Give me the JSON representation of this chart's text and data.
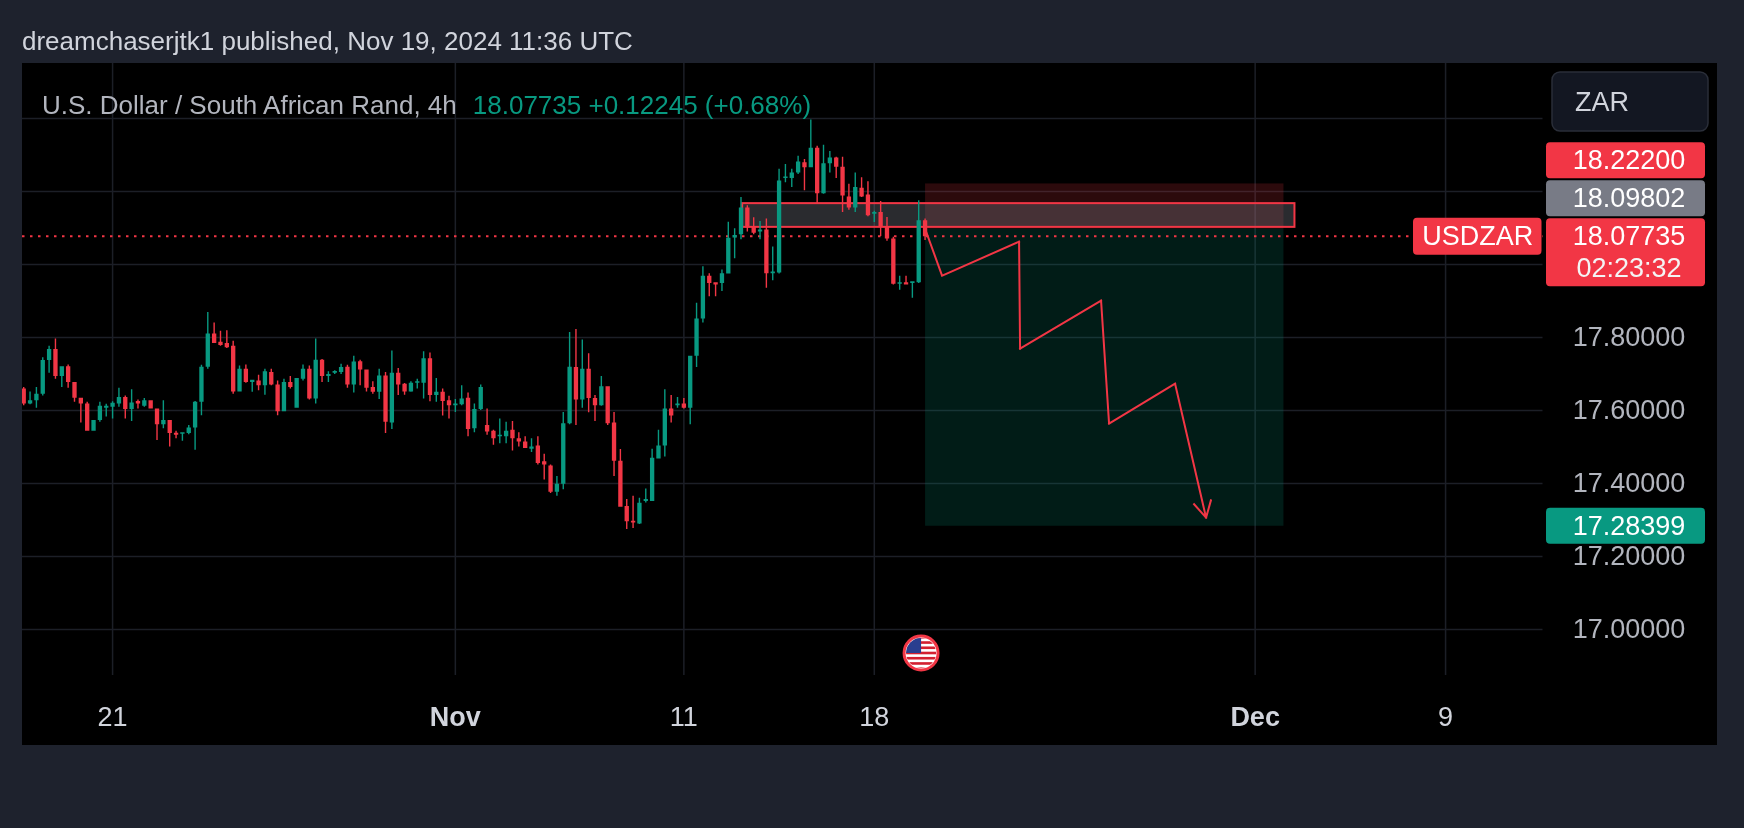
{
  "chart_data": {
    "type": "candlestick",
    "title": "U.S. Dollar / South African Rand, 4h",
    "subtitle": "18.07735 +0.12245 (+0.68%)",
    "ylabel": "ZAR",
    "categories": [
      null,
      null,
      null,
      null,
      null,
      null,
      null,
      null,
      null,
      null,
      null,
      null,
      null,
      null,
      "21",
      null,
      null,
      null,
      null,
      null,
      null,
      null,
      null,
      null,
      null,
      null,
      null,
      null,
      null,
      null,
      null,
      null,
      null,
      null,
      null,
      null,
      null,
      null,
      null,
      null,
      null,
      null,
      null,
      null,
      null,
      null,
      null,
      null,
      null,
      null,
      null,
      null,
      null,
      null,
      null,
      null,
      null,
      null,
      null,
      null,
      null,
      null,
      null,
      null,
      null,
      null,
      null,
      null,
      "Nov",
      null,
      null,
      null,
      null,
      null,
      null,
      null,
      null,
      null,
      null,
      null,
      null,
      null,
      null,
      null,
      null,
      null,
      null,
      null,
      null,
      null,
      null,
      null,
      null,
      null,
      null,
      null,
      null,
      null,
      null,
      null,
      null,
      null,
      null,
      null,
      "11",
      null,
      null,
      null,
      null,
      null,
      null,
      null,
      null,
      null,
      null,
      null,
      null,
      null,
      null,
      null,
      null,
      null,
      null,
      null,
      null,
      null,
      null,
      null,
      null,
      null,
      null,
      null,
      null,
      null,
      "18",
      null,
      null,
      null,
      null,
      null,
      null,
      null,
      null,
      null,
      null,
      null,
      null,
      null,
      null,
      null,
      null,
      null,
      null,
      null,
      null,
      null,
      null,
      null,
      null,
      null,
      null,
      null,
      null,
      null,
      null,
      null,
      null,
      null,
      null,
      null,
      null,
      null,
      null,
      null,
      null,
      null,
      null,
      null,
      null,
      null,
      null,
      null,
      null,
      null,
      null,
      null,
      null,
      null,
      null,
      null,
      null,
      null,
      null,
      null,
      "Dec",
      null,
      null,
      null,
      null,
      null,
      null,
      null,
      null,
      null,
      null,
      null,
      null,
      null,
      null,
      null,
      null,
      null,
      null,
      null,
      null,
      null,
      null,
      null,
      null,
      null,
      null,
      null,
      null,
      null,
      "9",
      null,
      null,
      null,
      null,
      null,
      null,
      null,
      null,
      null,
      null,
      null,
      null,
      null,
      null,
      null
    ],
    "ohlc": [
      [
        17.66,
        17.664,
        17.614,
        17.619
      ],
      [
        17.619,
        17.652,
        17.617,
        17.628
      ],
      [
        17.628,
        17.664,
        17.607,
        17.646
      ],
      [
        17.646,
        17.746,
        17.641,
        17.738
      ],
      [
        17.738,
        17.777,
        17.703,
        17.768
      ],
      [
        17.768,
        17.797,
        17.687,
        17.694
      ],
      [
        17.694,
        17.721,
        17.664,
        17.721
      ],
      [
        17.721,
        17.726,
        17.662,
        17.678
      ],
      [
        17.678,
        17.678,
        17.624,
        17.635
      ],
      [
        17.635,
        17.635,
        17.567,
        17.619
      ],
      [
        17.619,
        17.624,
        17.544,
        17.544
      ],
      [
        17.544,
        17.574,
        17.544,
        17.574
      ],
      [
        17.574,
        17.624,
        17.569,
        17.613
      ],
      [
        17.607,
        17.618,
        17.583,
        17.613
      ],
      [
        17.61,
        17.625,
        17.578,
        17.621
      ],
      [
        17.619,
        17.662,
        17.61,
        17.637
      ],
      [
        17.637,
        17.641,
        17.578,
        17.604
      ],
      [
        17.604,
        17.658,
        17.571,
        17.622
      ],
      [
        17.626,
        17.63,
        17.605,
        17.619
      ],
      [
        17.613,
        17.634,
        17.61,
        17.628
      ],
      [
        17.628,
        17.628,
        17.605,
        17.605
      ],
      [
        17.605,
        17.605,
        17.519,
        17.562
      ],
      [
        17.562,
        17.628,
        17.551,
        17.574
      ],
      [
        17.574,
        17.574,
        17.501,
        17.538
      ],
      [
        17.539,
        17.544,
        17.524,
        17.533
      ],
      [
        17.536,
        17.54,
        17.517,
        17.54
      ],
      [
        17.538,
        17.56,
        17.535,
        17.553
      ],
      [
        17.553,
        17.626,
        17.492,
        17.624
      ],
      [
        17.624,
        17.725,
        17.587,
        17.72
      ],
      [
        17.72,
        17.87,
        17.714,
        17.811
      ],
      [
        17.811,
        17.841,
        17.785,
        17.785
      ],
      [
        17.788,
        17.818,
        17.777,
        17.779
      ],
      [
        17.785,
        17.82,
        17.771,
        17.773
      ],
      [
        17.777,
        17.791,
        17.646,
        17.652
      ],
      [
        17.652,
        17.723,
        17.652,
        17.714
      ],
      [
        17.714,
        17.726,
        17.676,
        17.678
      ],
      [
        17.678,
        17.684,
        17.651,
        17.684
      ],
      [
        17.682,
        17.698,
        17.655,
        17.669
      ],
      [
        17.669,
        17.714,
        17.643,
        17.707
      ],
      [
        17.705,
        17.714,
        17.669,
        17.671
      ],
      [
        17.671,
        17.682,
        17.587,
        17.598
      ],
      [
        17.598,
        17.687,
        17.598,
        17.678
      ],
      [
        17.678,
        17.694,
        17.66,
        17.664
      ],
      [
        17.607,
        17.689,
        17.607,
        17.689
      ],
      [
        17.687,
        17.726,
        17.682,
        17.714
      ],
      [
        17.714,
        17.723,
        17.63,
        17.633
      ],
      [
        17.633,
        17.797,
        17.619,
        17.739
      ],
      [
        17.739,
        17.741,
        17.678,
        17.694
      ],
      [
        17.694,
        17.707,
        17.678,
        17.7
      ],
      [
        17.703,
        17.71,
        17.7,
        17.708
      ],
      [
        17.705,
        17.728,
        17.7,
        17.719
      ],
      [
        17.72,
        17.725,
        17.662,
        17.671
      ],
      [
        17.671,
        17.75,
        17.649,
        17.734
      ],
      [
        17.735,
        17.739,
        17.669,
        17.712
      ],
      [
        17.712,
        17.712,
        17.652,
        17.662
      ],
      [
        17.664,
        17.68,
        17.646,
        17.651
      ],
      [
        17.651,
        17.714,
        17.631,
        17.696
      ],
      [
        17.696,
        17.705,
        17.538,
        17.569
      ],
      [
        17.567,
        17.764,
        17.549,
        17.703
      ],
      [
        17.703,
        17.716,
        17.642,
        17.671
      ],
      [
        17.673,
        17.675,
        17.643,
        17.652
      ],
      [
        17.652,
        17.68,
        17.651,
        17.676
      ],
      [
        17.676,
        17.687,
        17.66,
        17.68
      ],
      [
        17.676,
        17.762,
        17.633,
        17.743
      ],
      [
        17.743,
        17.759,
        17.625,
        17.642
      ],
      [
        17.642,
        17.689,
        17.624,
        17.651
      ],
      [
        17.651,
        17.66,
        17.586,
        17.626
      ],
      [
        17.628,
        17.64,
        17.578,
        17.614
      ],
      [
        17.614,
        17.631,
        17.596,
        17.619
      ],
      [
        17.617,
        17.669,
        17.614,
        17.633
      ],
      [
        17.635,
        17.649,
        17.529,
        17.549
      ],
      [
        17.551,
        17.619,
        17.54,
        17.604
      ],
      [
        17.604,
        17.671,
        17.601,
        17.664
      ],
      [
        17.56,
        17.605,
        17.533,
        17.542
      ],
      [
        17.544,
        17.547,
        17.506,
        17.524
      ],
      [
        17.529,
        17.578,
        17.51,
        17.533
      ],
      [
        17.529,
        17.569,
        17.51,
        17.544
      ],
      [
        17.547,
        17.571,
        17.49,
        17.524
      ],
      [
        17.524,
        17.54,
        17.501,
        17.515
      ],
      [
        17.515,
        17.529,
        17.497,
        17.497
      ],
      [
        17.495,
        17.524,
        17.486,
        17.501
      ],
      [
        17.504,
        17.529,
        17.452,
        17.456
      ],
      [
        17.461,
        17.481,
        17.411,
        17.452
      ],
      [
        17.449,
        17.452,
        17.374,
        17.377
      ],
      [
        17.377,
        17.42,
        17.366,
        17.399
      ],
      [
        17.399,
        17.596,
        17.384,
        17.565
      ],
      [
        17.565,
        17.815,
        17.562,
        17.72
      ],
      [
        17.719,
        17.823,
        17.56,
        17.63
      ],
      [
        17.63,
        17.794,
        17.607,
        17.714
      ],
      [
        17.714,
        17.757,
        17.595,
        17.634
      ],
      [
        17.634,
        17.642,
        17.571,
        17.614
      ],
      [
        17.614,
        17.694,
        17.613,
        17.666
      ],
      [
        17.666,
        17.666,
        17.56,
        17.565
      ],
      [
        17.567,
        17.596,
        17.42,
        17.462
      ],
      [
        17.462,
        17.494,
        17.336,
        17.336
      ],
      [
        17.338,
        17.357,
        17.275,
        17.296
      ],
      [
        17.298,
        17.366,
        17.278,
        17.293
      ],
      [
        17.29,
        17.361,
        17.289,
        17.347
      ],
      [
        17.352,
        17.386,
        17.348,
        17.357
      ],
      [
        17.352,
        17.495,
        17.352,
        17.47
      ],
      [
        17.468,
        17.547,
        17.468,
        17.504
      ],
      [
        17.504,
        17.658,
        17.474,
        17.605
      ],
      [
        17.605,
        17.642,
        17.567,
        17.586
      ],
      [
        17.614,
        17.637,
        17.607,
        17.619
      ],
      [
        17.619,
        17.634,
        17.605,
        17.607
      ],
      [
        17.607,
        17.75,
        17.562,
        17.75
      ],
      [
        17.75,
        17.895,
        17.719,
        17.852
      ],
      [
        17.852,
        17.995,
        17.841,
        17.969
      ],
      [
        17.969,
        17.976,
        17.913,
        17.949
      ],
      [
        17.951,
        17.951,
        17.913,
        17.945
      ],
      [
        17.949,
        17.986,
        17.927,
        17.976
      ],
      [
        17.975,
        18.117,
        17.975,
        18.073
      ],
      [
        18.074,
        18.099,
        18.017,
        18.081
      ],
      [
        18.083,
        18.185,
        18.069,
        18.156
      ],
      [
        18.156,
        18.162,
        18.09,
        18.101
      ],
      [
        18.103,
        18.129,
        18.083,
        18.087
      ],
      [
        18.09,
        18.119,
        18.069,
        18.096
      ],
      [
        18.096,
        18.126,
        17.936,
        17.976
      ],
      [
        17.976,
        18.049,
        17.957,
        17.981
      ],
      [
        17.978,
        18.262,
        17.975,
        18.23
      ],
      [
        18.237,
        18.275,
        18.225,
        18.241
      ],
      [
        18.237,
        18.262,
        18.212,
        18.252
      ],
      [
        18.252,
        18.298,
        18.248,
        18.282
      ],
      [
        18.28,
        18.289,
        18.203,
        18.266
      ],
      [
        18.266,
        18.397,
        18.266,
        18.32
      ],
      [
        18.32,
        18.325,
        18.168,
        18.195
      ],
      [
        18.195,
        18.328,
        18.194,
        18.277
      ],
      [
        18.277,
        18.311,
        18.252,
        18.293
      ],
      [
        18.293,
        18.295,
        18.237,
        18.268
      ],
      [
        18.268,
        18.295,
        18.144,
        18.189
      ],
      [
        18.186,
        18.221,
        18.15,
        18.156
      ],
      [
        18.156,
        18.252,
        18.144,
        18.212
      ],
      [
        18.21,
        18.239,
        18.185,
        18.186
      ],
      [
        18.192,
        18.228,
        18.132,
        18.135
      ],
      [
        18.139,
        18.147,
        18.116,
        18.144
      ],
      [
        18.144,
        18.174,
        18.078,
        18.103
      ],
      [
        18.103,
        18.13,
        18.065,
        18.071
      ],
      [
        18.071,
        18.076,
        17.945,
        17.947
      ],
      [
        17.947,
        17.969,
        17.931,
        17.951
      ],
      [
        17.951,
        17.969,
        17.945,
        17.945
      ],
      [
        17.949,
        17.954,
        17.909,
        17.954
      ],
      [
        17.951,
        18.176,
        17.949,
        18.121
      ],
      [
        18.121,
        18.126,
        18.067,
        18.077
      ],
      null,
      null,
      null,
      null,
      null,
      null,
      null,
      null,
      null,
      null,
      null,
      null,
      null,
      null,
      null,
      null,
      null,
      null,
      null,
      null,
      null,
      null,
      null,
      null,
      null,
      null,
      null,
      null,
      null,
      null,
      null,
      null,
      null,
      null,
      null,
      null,
      null,
      null,
      null,
      null,
      null,
      null,
      null,
      null,
      null,
      null,
      null,
      null,
      null,
      null,
      null,
      null,
      null,
      null,
      null,
      null,
      null,
      null,
      null,
      null,
      null,
      null,
      null,
      null,
      null,
      null,
      null,
      null,
      null,
      null,
      null,
      null,
      null,
      null,
      null,
      null,
      null,
      null,
      null,
      null,
      null,
      null,
      null,
      null,
      null,
      null,
      null,
      null,
      null,
      null,
      null,
      null,
      null,
      null,
      null,
      null,
      null
    ],
    "colors": [
      "#f23645",
      "#089981",
      "#089981",
      "#089981",
      "#089981",
      "#f23645",
      "#089981",
      "#f23645",
      "#f23645",
      "#f23645",
      "#f23645",
      "#089981",
      "#089981",
      "#089981",
      "#089981",
      "#089981",
      "#f23645",
      "#089981",
      "#f23645",
      "#089981",
      "#f23645",
      "#f23645",
      "#089981",
      "#f23645",
      "#f23645",
      "#089981",
      "#089981",
      "#089981",
      "#089981",
      "#089981",
      "#f23645",
      "#f23645",
      "#f23645",
      "#f23645",
      "#089981",
      "#f23645",
      "#089981",
      "#f23645",
      "#089981",
      "#f23645",
      "#f23645",
      "#089981",
      "#f23645",
      "#089981",
      "#089981",
      "#f23645",
      "#089981",
      "#f23645",
      "#089981",
      "#089981",
      "#089981",
      "#f23645",
      "#089981",
      "#f23645",
      "#f23645",
      "#f23645",
      "#089981",
      "#f23645",
      "#089981",
      "#f23645",
      "#f23645",
      "#089981",
      "#089981",
      "#089981",
      "#f23645",
      "#089981",
      "#f23645",
      "#f23645",
      "#089981",
      "#089981",
      "#f23645",
      "#089981",
      "#089981",
      "#f23645",
      "#f23645",
      "#089981",
      "#089981",
      "#f23645",
      "#f23645",
      "#f23645",
      "#089981",
      "#f23645",
      "#f23645",
      "#f23645",
      "#089981",
      "#089981",
      "#089981",
      "#f23645",
      "#089981",
      "#f23645",
      "#f23645",
      "#089981",
      "#f23645",
      "#f23645",
      "#f23645",
      "#f23645",
      "#f23645",
      "#089981",
      "#089981",
      "#089981",
      "#089981",
      "#089981",
      "#f23645",
      "#089981",
      "#f23645",
      "#089981",
      "#089981",
      "#089981",
      "#f23645",
      "#f23645",
      "#089981",
      "#089981",
      "#089981",
      "#089981",
      "#f23645",
      "#f23645",
      "#089981",
      "#f23645",
      "#089981",
      "#089981",
      "#089981",
      "#089981",
      "#089981",
      "#f23645",
      "#089981",
      "#f23645",
      "#089981",
      "#089981",
      "#f23645",
      "#f23645",
      "#f23645",
      "#089981",
      "#f23645",
      "#f23645",
      "#089981",
      "#f23645",
      "#f23645",
      "#f23645",
      "#089981",
      "#f23645",
      "#089981",
      "#089981",
      "#f23645",
      null,
      null,
      null,
      null,
      null,
      null,
      null,
      null,
      null,
      null,
      null,
      null,
      null,
      null,
      null,
      null,
      null,
      null,
      null,
      null,
      null,
      null,
      null,
      null,
      null,
      null,
      null,
      null,
      null,
      null,
      null,
      null,
      null,
      null,
      null,
      null,
      null,
      null,
      null,
      null,
      null,
      null,
      null,
      null,
      null,
      null,
      null,
      null,
      null,
      null,
      null,
      null,
      null,
      null,
      null,
      null,
      null,
      null,
      null,
      null,
      null,
      null,
      null,
      null,
      null,
      null,
      null,
      null,
      null,
      null,
      null,
      null,
      null,
      null,
      null,
      null,
      null,
      null,
      null,
      null,
      null,
      null,
      null,
      null,
      null,
      null,
      null,
      null,
      null,
      null,
      null,
      null,
      null,
      null,
      null,
      null,
      null
    ],
    "ylim": [
      16.875,
      18.552
    ],
    "yticks": [
      {
        "value": 17,
        "label": "17.00000"
      },
      {
        "value": 17.2,
        "label": "17.20000"
      },
      {
        "value": 17.4,
        "label": "17.40000"
      },
      {
        "value": 17.6,
        "label": "17.60000"
      },
      {
        "value": 17.8,
        "label": "17.80000"
      },
      {
        "value": 18,
        "label": null
      },
      {
        "value": 18.2,
        "label": null
      },
      {
        "value": 18.4,
        "label": null
      }
    ],
    "grid": true,
    "ref_lines": [
      {
        "axis": "y",
        "value": 18.07735,
        "label": "USDZAR",
        "color": "#f23645",
        "line_style": "dotted"
      }
    ],
    "bands": [
      {
        "axis": "y",
        "from": 18.09802,
        "to": 18.222,
        "color": "#f23645"
      },
      {
        "axis": "y",
        "from": 17.28399,
        "to": 18.09802,
        "color": "#089981"
      },
      {
        "axis": "y",
        "from": 18.103,
        "to": 18.168,
        "color": "#f23645"
      }
    ],
    "annotations": [
      "dreamchaserjtk1 published, Nov 19, 2024 11:36 UTC",
      "18.22200",
      "18.09802",
      "18.07735",
      "02:23:32",
      "17.28399"
    ]
  }
}
